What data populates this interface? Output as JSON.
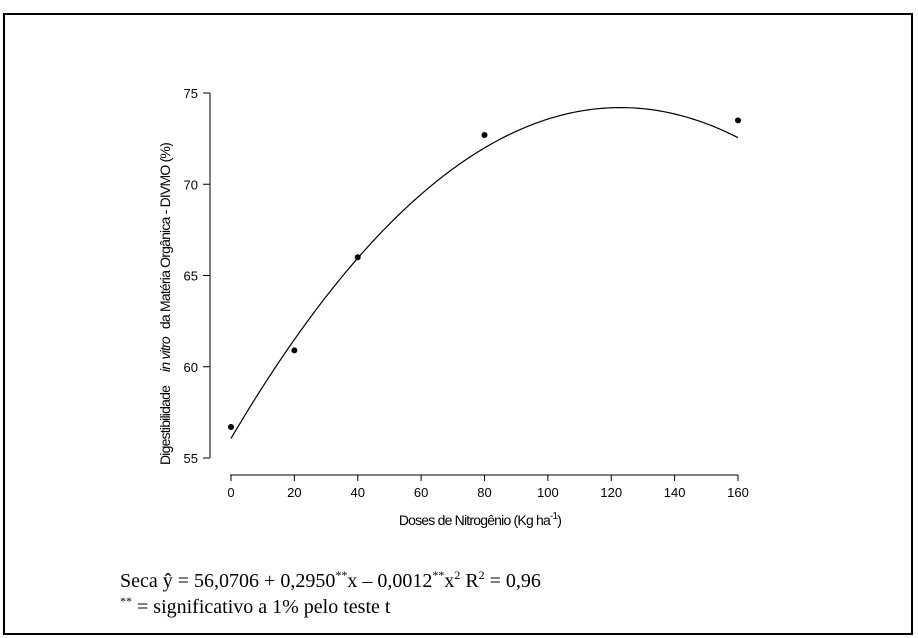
{
  "chart_data": {
    "type": "scatter",
    "xlabel": "Doses de Nitrogênio (Kg ha",
    "xlabel_sup": "-1",
    "xlabel_end": ")",
    "ylabel_part1": "Digestibilidade",
    "ylabel_italic": "in vitro",
    "ylabel_part2": "da Matéria Orgânica - DIVMO (%)",
    "xlim": [
      0,
      160
    ],
    "ylim": [
      55,
      75
    ],
    "x_ticks": [
      "0",
      "20",
      "40",
      "60",
      "80",
      "100",
      "120",
      "140",
      "160"
    ],
    "y_ticks": [
      "55",
      "60",
      "65",
      "70",
      "75"
    ],
    "points": [
      {
        "x": 0,
        "y": 56.7
      },
      {
        "x": 20,
        "y": 60.9
      },
      {
        "x": 40,
        "y": 66.0
      },
      {
        "x": 80,
        "y": 72.7
      },
      {
        "x": 160,
        "y": 73.5
      }
    ],
    "fit": {
      "type": "quadratic",
      "a": 56.0706,
      "b": 0.295,
      "c": -0.0012
    },
    "grid": false,
    "legend": "none"
  },
  "equation": {
    "prefix": "Seca ŷ = 56,0706 + 0,2950",
    "sup1": "**",
    "mid": "x – 0,0012",
    "sup2": "**",
    "mid2": "x",
    "sup3": "2",
    "r2_label": " R",
    "sup4": "2",
    "r2_value": " = 0,96"
  },
  "note": {
    "sup": "**",
    "text": " = significativo a 1% pelo teste t"
  },
  "colors": {
    "ink": "#000000",
    "background": "#ffffff"
  }
}
